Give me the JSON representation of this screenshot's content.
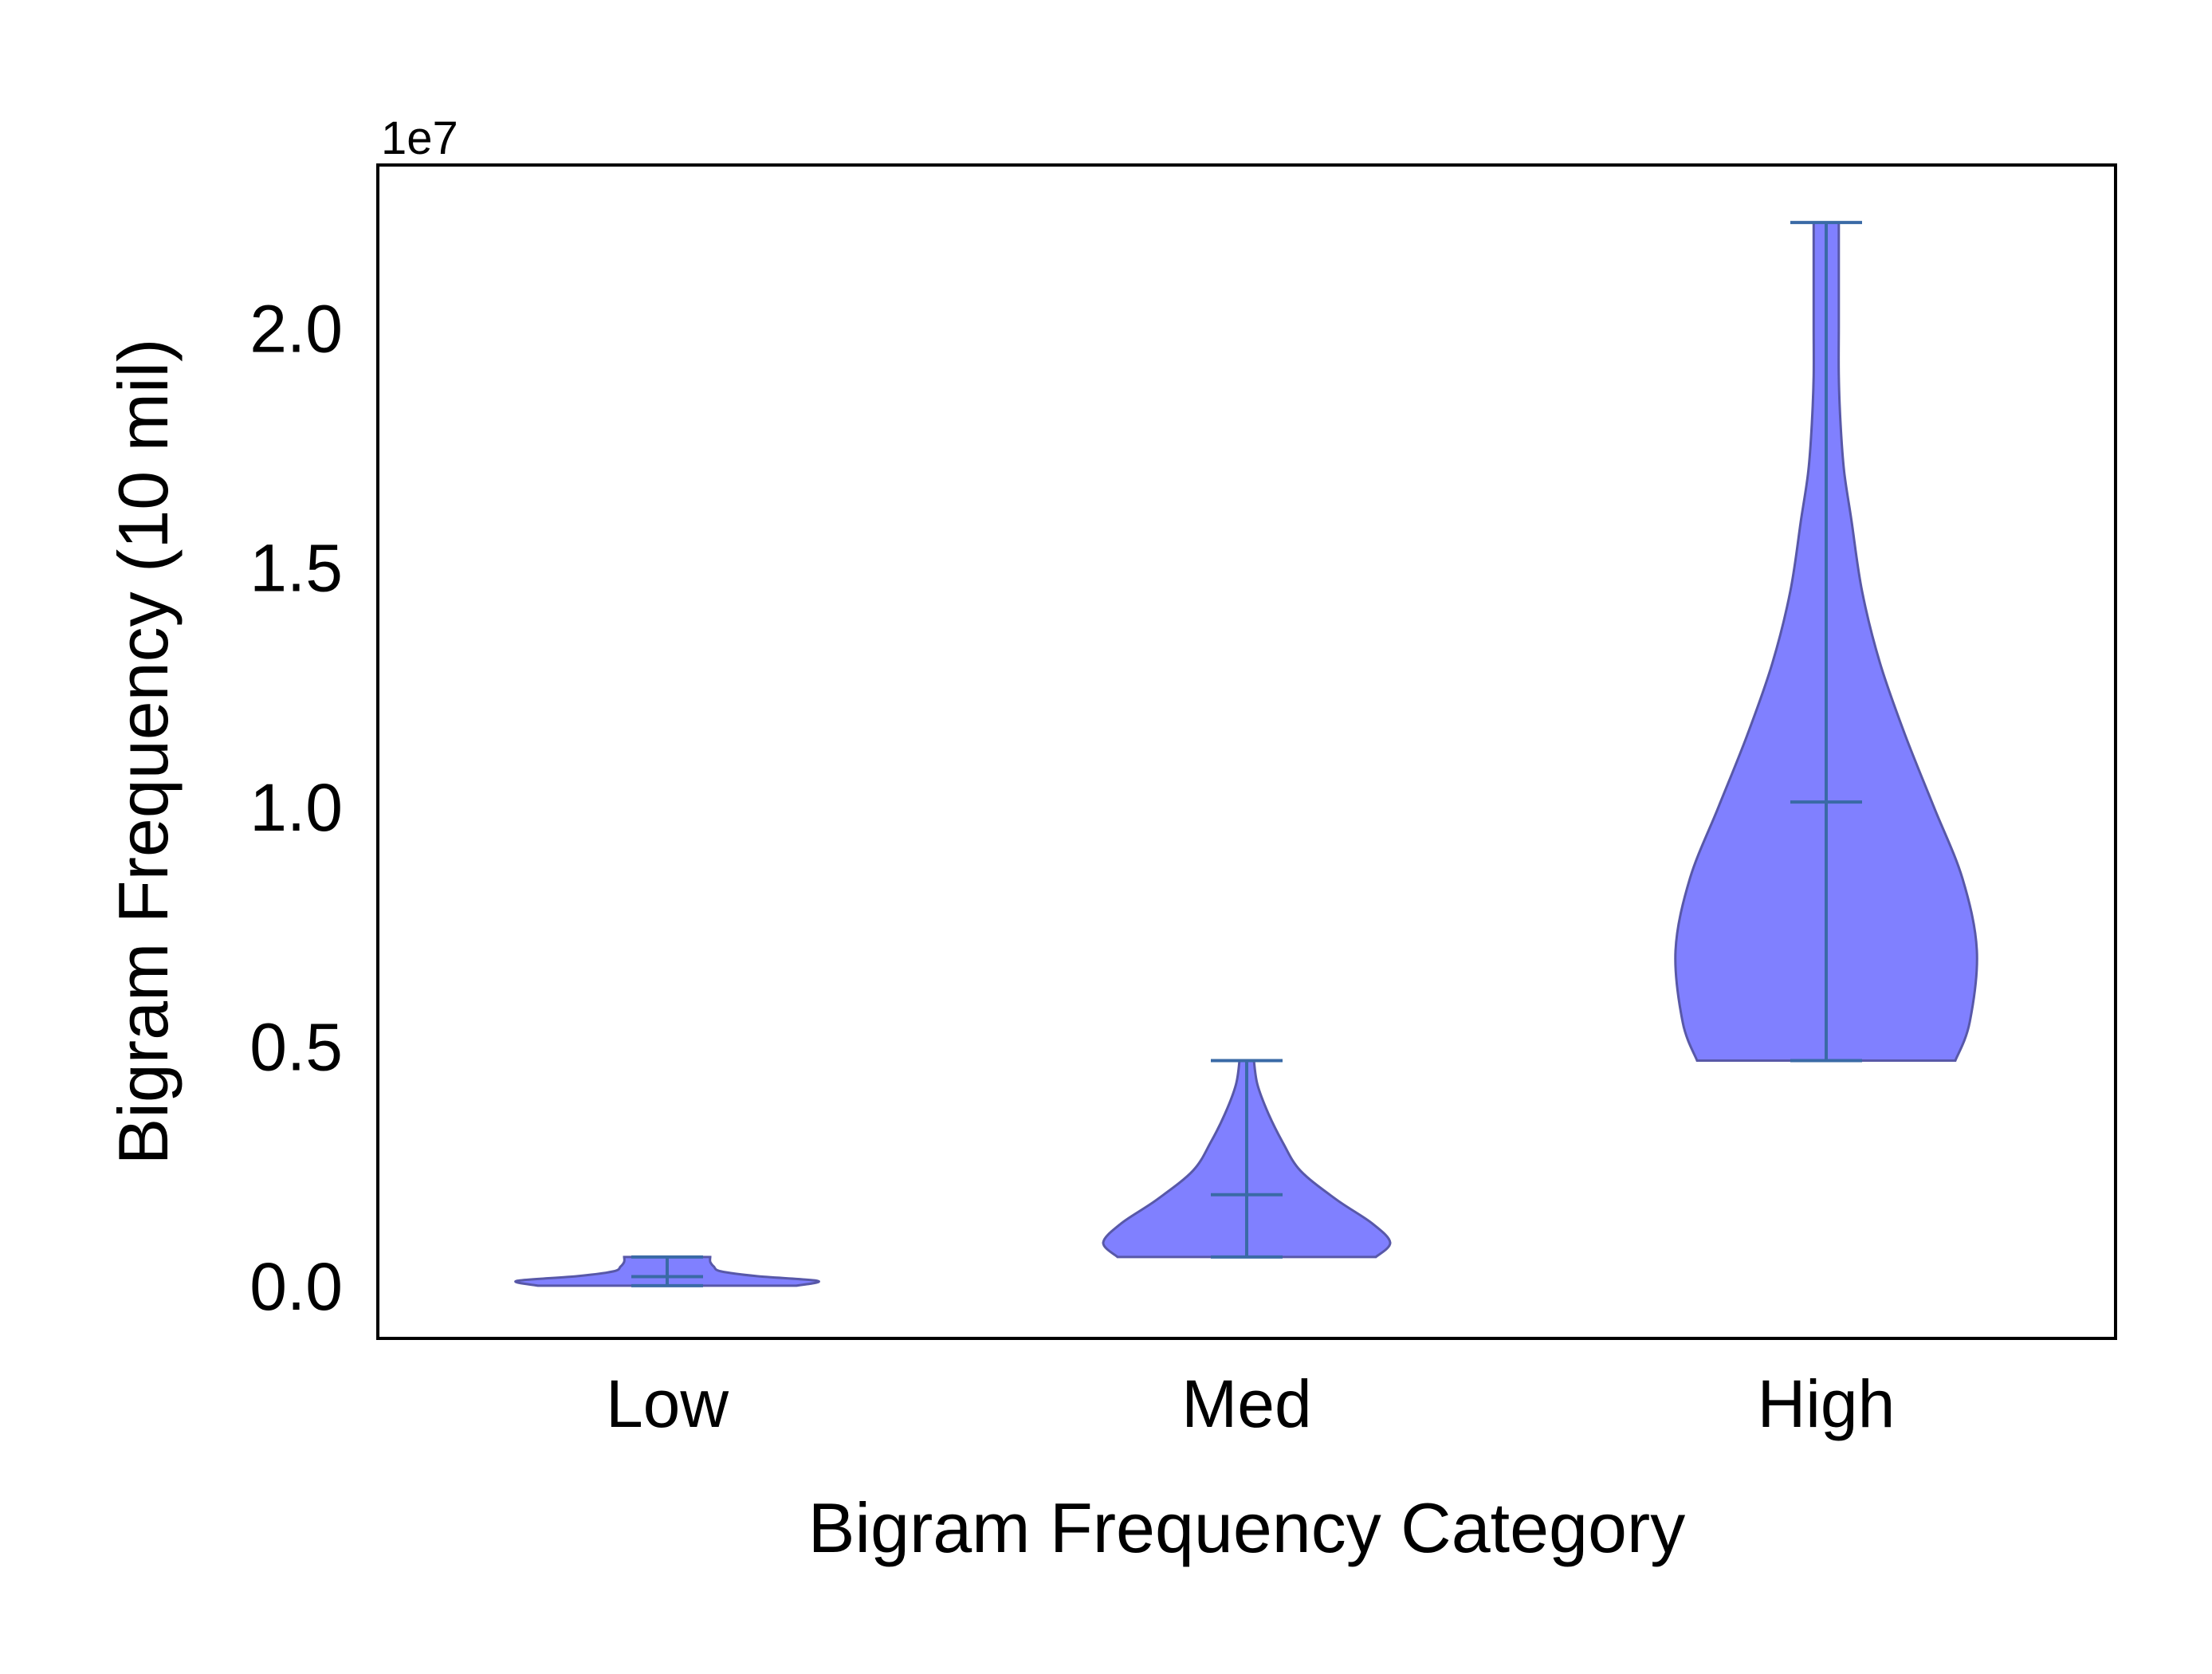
{
  "chart_data": {
    "type": "violin",
    "title": "",
    "xlabel": "Bigram Frequency Category",
    "ylabel": "Bigram Frequency (10 mil)",
    "y_offset_label": "1e7",
    "y_scale": 10000000,
    "ylim": [
      -1100000,
      23400000
    ],
    "y_ticks": [
      0,
      5000000,
      10000000,
      15000000,
      20000000
    ],
    "y_tick_labels": [
      "0.0",
      "0.5",
      "1.0",
      "1.5",
      "2.0"
    ],
    "categories": [
      "Low",
      "Med",
      "High"
    ],
    "grid": false,
    "fill_color": "#8080ff",
    "edge_color": "#5858a8",
    "line_color": "#3a6aa6",
    "violins": [
      {
        "name": "Low",
        "min": 0,
        "max": 600000,
        "median": 190000,
        "density": [
          [
            0,
            0.36
          ],
          [
            100000,
            0.42
          ],
          [
            200000,
            0.25
          ],
          [
            300000,
            0.15
          ],
          [
            400000,
            0.13
          ],
          [
            500000,
            0.12
          ],
          [
            600000,
            0.12
          ]
        ]
      },
      {
        "name": "Med",
        "min": 600000,
        "max": 4700000,
        "median": 1900000,
        "density": [
          [
            600000,
            0.36
          ],
          [
            900000,
            0.4
          ],
          [
            1300000,
            0.35
          ],
          [
            1800000,
            0.25
          ],
          [
            2400000,
            0.15
          ],
          [
            3000000,
            0.1
          ],
          [
            3600000,
            0.06
          ],
          [
            4200000,
            0.03
          ],
          [
            4700000,
            0.02
          ]
        ]
      },
      {
        "name": "High",
        "min": 4700000,
        "max": 22200000,
        "median": 10100000,
        "density": [
          [
            4700000,
            0.36
          ],
          [
            5500000,
            0.4
          ],
          [
            7000000,
            0.42
          ],
          [
            8500000,
            0.38
          ],
          [
            10000000,
            0.3
          ],
          [
            11500000,
            0.22
          ],
          [
            13000000,
            0.15
          ],
          [
            14500000,
            0.1
          ],
          [
            16000000,
            0.07
          ],
          [
            17000000,
            0.05
          ],
          [
            18000000,
            0.04
          ],
          [
            19000000,
            0.035
          ],
          [
            20000000,
            0.035
          ],
          [
            21000000,
            0.035
          ],
          [
            22200000,
            0.035
          ]
        ]
      }
    ]
  }
}
